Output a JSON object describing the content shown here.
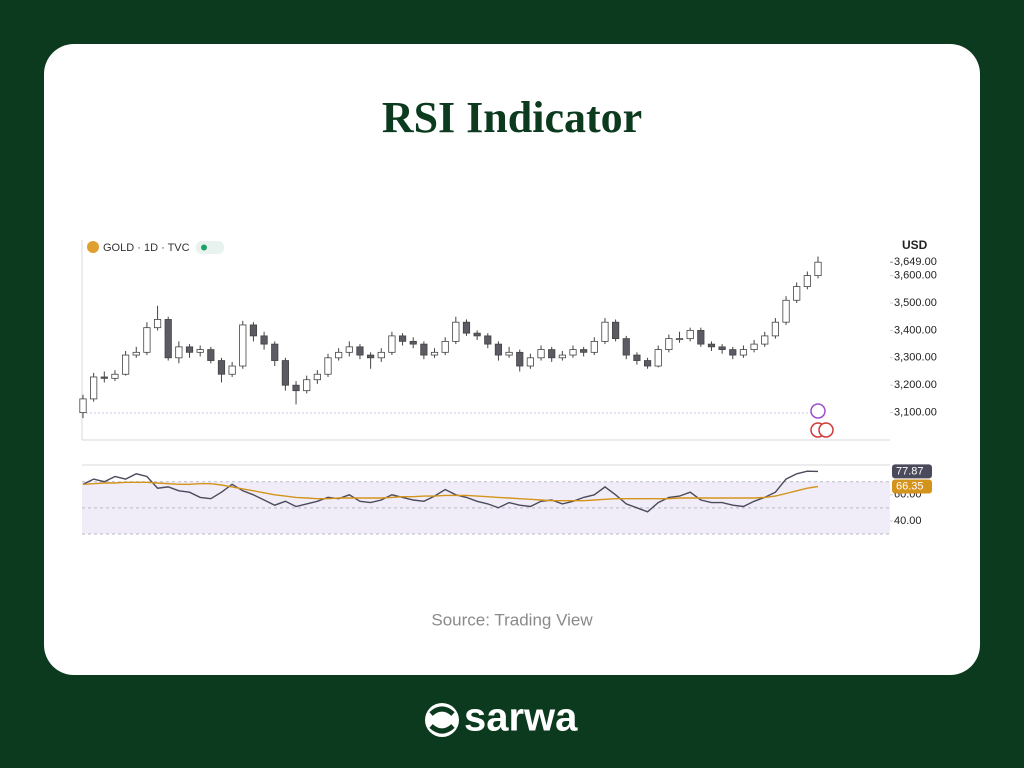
{
  "title": "RSI Indicator",
  "source": "Source: Trading View",
  "brand": "sarwa",
  "chart_data": [
    {
      "type": "candlestick",
      "legend": "GOLD · 1D · TVC",
      "axis_label": "USD",
      "up_color": "#ffffff",
      "down_color": "#5b5b63",
      "open": [
        3100,
        3150,
        3230,
        3225,
        3240,
        3310,
        3320,
        3410,
        3440,
        3300,
        3340,
        3320,
        3330,
        3290,
        3240,
        3270,
        3420,
        3380,
        3350,
        3290,
        3200,
        3180,
        3220,
        3240,
        3300,
        3320,
        3340,
        3310,
        3300,
        3320,
        3380,
        3360,
        3350,
        3310,
        3320,
        3360,
        3430,
        3390,
        3380,
        3350,
        3310,
        3320,
        3270,
        3300,
        3330,
        3300,
        3310,
        3330,
        3320,
        3360,
        3430,
        3370,
        3310,
        3290,
        3270,
        3330,
        3370,
        3370,
        3400,
        3350,
        3340,
        3330,
        3310,
        3330,
        3350,
        3380,
        3430,
        3510,
        3560,
        3600
      ],
      "high": [
        3165,
        3245,
        3250,
        3255,
        3325,
        3340,
        3430,
        3490,
        3450,
        3360,
        3350,
        3345,
        3340,
        3300,
        3285,
        3435,
        3430,
        3395,
        3360,
        3300,
        3215,
        3235,
        3255,
        3315,
        3335,
        3360,
        3350,
        3320,
        3335,
        3395,
        3390,
        3375,
        3360,
        3335,
        3375,
        3450,
        3440,
        3400,
        3390,
        3360,
        3340,
        3330,
        3315,
        3345,
        3340,
        3325,
        3345,
        3340,
        3375,
        3445,
        3440,
        3380,
        3320,
        3300,
        3345,
        3385,
        3395,
        3410,
        3410,
        3360,
        3350,
        3340,
        3345,
        3365,
        3395,
        3445,
        3525,
        3575,
        3615,
        3670
      ],
      "low": [
        3080,
        3140,
        3210,
        3215,
        3235,
        3300,
        3310,
        3400,
        3290,
        3280,
        3300,
        3305,
        3280,
        3210,
        3230,
        3260,
        3360,
        3330,
        3270,
        3180,
        3130,
        3170,
        3205,
        3230,
        3290,
        3305,
        3295,
        3260,
        3285,
        3310,
        3345,
        3335,
        3295,
        3300,
        3310,
        3350,
        3380,
        3365,
        3335,
        3290,
        3300,
        3250,
        3260,
        3290,
        3285,
        3290,
        3300,
        3305,
        3310,
        3350,
        3360,
        3295,
        3275,
        3260,
        3265,
        3320,
        3355,
        3360,
        3340,
        3325,
        3315,
        3295,
        3300,
        3320,
        3340,
        3370,
        3420,
        3500,
        3550,
        3590
      ],
      "close": [
        3150,
        3230,
        3225,
        3240,
        3310,
        3320,
        3410,
        3440,
        3300,
        3340,
        3320,
        3330,
        3290,
        3240,
        3270,
        3420,
        3380,
        3350,
        3290,
        3200,
        3180,
        3220,
        3240,
        3300,
        3320,
        3340,
        3310,
        3300,
        3320,
        3380,
        3360,
        3350,
        3310,
        3320,
        3360,
        3430,
        3390,
        3380,
        3350,
        3310,
        3320,
        3270,
        3300,
        3330,
        3300,
        3310,
        3330,
        3320,
        3360,
        3430,
        3370,
        3310,
        3290,
        3270,
        3330,
        3370,
        3370,
        3400,
        3350,
        3340,
        3330,
        3310,
        3330,
        3350,
        3380,
        3430,
        3510,
        3560,
        3600,
        3649
      ],
      "ylim": [
        3000,
        3730
      ],
      "yticks": [
        {
          "value": 3100,
          "label": "3,100.00"
        },
        {
          "value": 3200,
          "label": "3,200.00"
        },
        {
          "value": 3300,
          "label": "3,300.00"
        },
        {
          "value": 3400,
          "label": "3,400.00"
        },
        {
          "value": 3500,
          "label": "3,500.00"
        },
        {
          "value": 3600,
          "label": "3,600.00"
        }
      ],
      "last_price": {
        "value": 3649,
        "label": "3,649.00"
      }
    },
    {
      "type": "line",
      "series": [
        {
          "color": "#4b4a5c",
          "values": [
            68,
            72,
            70,
            74,
            72,
            76,
            74,
            65,
            66,
            63,
            62,
            58,
            57,
            62,
            68,
            63,
            60,
            56,
            52,
            55,
            51,
            53,
            55,
            58,
            57,
            60,
            55,
            54,
            56,
            60,
            58,
            56,
            55,
            59,
            64,
            60,
            58,
            55,
            53,
            50,
            54,
            52,
            51,
            55,
            56,
            53,
            55,
            58,
            60,
            66,
            60,
            53,
            50,
            47,
            54,
            58,
            59,
            62,
            56,
            54,
            54,
            52,
            51,
            55,
            58,
            62,
            72,
            76,
            78,
            77.87
          ]
        },
        {
          "color": "#d4941c",
          "values": [
            68,
            68.5,
            69,
            69,
            69.5,
            69.5,
            69.5,
            69,
            68.5,
            68,
            68,
            68.5,
            68.5,
            67.5,
            66,
            64.5,
            63,
            61.5,
            60,
            59,
            58,
            57.5,
            57,
            57,
            57.5,
            57.5,
            57.5,
            57.5,
            57.5,
            58,
            58.5,
            58.5,
            59,
            59,
            59.5,
            59.5,
            59.5,
            59,
            58.5,
            58,
            57.5,
            57,
            56.5,
            56,
            55.5,
            55.5,
            55.5,
            55.5,
            56,
            56.5,
            57,
            57,
            57,
            57,
            57,
            57,
            57.5,
            57.5,
            57.5,
            57.5,
            57.5,
            57.5,
            57.5,
            57.5,
            58,
            59,
            61,
            63,
            65,
            66.35
          ]
        }
      ],
      "ylim": [
        30,
        82
      ],
      "yticks": [
        {
          "value": 40,
          "label": "40.00"
        },
        {
          "value": 60,
          "label": "60.00"
        }
      ],
      "levels": [
        30,
        50,
        70
      ],
      "band_color": "#f1edf8"
    }
  ]
}
